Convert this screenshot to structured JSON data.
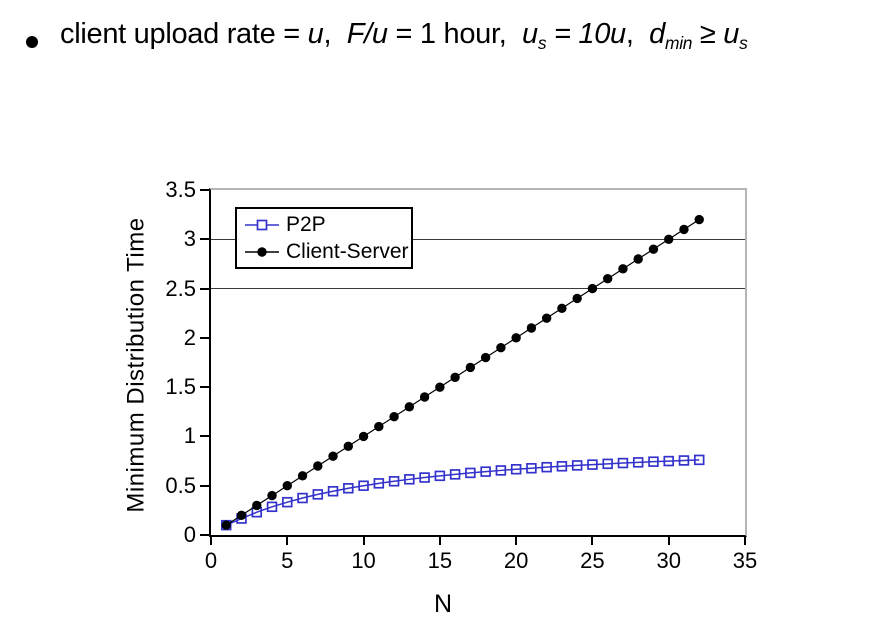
{
  "bullet": {
    "marker": "•",
    "t1": "client upload rate = ",
    "t2": "u",
    "t3": ",  ",
    "t4": "F/u",
    "t5": " = 1 hour,  ",
    "t6": "u",
    "t7": "s",
    "t8": " = 10u",
    "t9": ",  ",
    "t10": "d",
    "t11": "min",
    "t12": " ≥ ",
    "t13": "u",
    "t14": "s"
  },
  "colors": {
    "p2p_blue": "#3333cc",
    "client_server_black": "#000000",
    "gridline": "#3a3a3a",
    "plot_border_gray": "#b5b5b5",
    "background": "#ffffff"
  },
  "chart_data": {
    "type": "line",
    "title": "",
    "xlabel": "N",
    "ylabel": "Minimum Distribution Time",
    "xlim": [
      0,
      35
    ],
    "ylim": [
      0,
      3.5
    ],
    "x_ticks": [
      0,
      5,
      10,
      15,
      20,
      25,
      30,
      35
    ],
    "y_ticks": [
      0,
      0.5,
      1,
      1.5,
      2,
      2.5,
      3,
      3.5
    ],
    "gridlines_y": [
      2.5,
      3
    ],
    "grid": "partial",
    "legend_position": "top-left",
    "x": [
      1,
      2,
      3,
      4,
      5,
      6,
      7,
      8,
      9,
      10,
      11,
      12,
      13,
      14,
      15,
      16,
      17,
      18,
      19,
      20,
      21,
      22,
      23,
      24,
      25,
      26,
      27,
      28,
      29,
      30,
      31,
      32
    ],
    "series": [
      {
        "name": "P2P",
        "color": "#3333cc",
        "marker": "open-square",
        "values": [
          0.1,
          0.167,
          0.231,
          0.286,
          0.333,
          0.375,
          0.412,
          0.444,
          0.474,
          0.5,
          0.524,
          0.545,
          0.565,
          0.583,
          0.6,
          0.615,
          0.63,
          0.643,
          0.655,
          0.667,
          0.677,
          0.688,
          0.697,
          0.706,
          0.714,
          0.722,
          0.73,
          0.737,
          0.744,
          0.75,
          0.756,
          0.762
        ]
      },
      {
        "name": "Client-Server",
        "color": "#000000",
        "marker": "filled-circle",
        "values": [
          0.1,
          0.2,
          0.3,
          0.4,
          0.5,
          0.6,
          0.7,
          0.8,
          0.9,
          1.0,
          1.1,
          1.2,
          1.3,
          1.4,
          1.5,
          1.6,
          1.7,
          1.8,
          1.9,
          2.0,
          2.1,
          2.2,
          2.3,
          2.4,
          2.5,
          2.6,
          2.7,
          2.8,
          2.9,
          3.0,
          3.1,
          3.2
        ]
      }
    ]
  }
}
